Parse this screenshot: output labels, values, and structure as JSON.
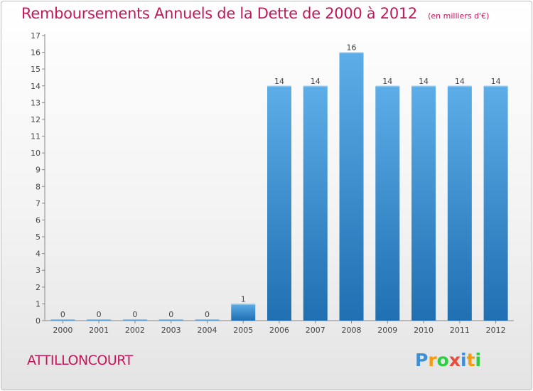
{
  "header": {
    "title": "Remboursements Annuels de la Dette de 2000 à 2012",
    "unit": "(en milliers d'€)"
  },
  "footer": {
    "commune": "ATTILLONCOURT",
    "logo": {
      "letters": [
        "P",
        "r",
        "o",
        "x",
        "i",
        "t",
        "i"
      ],
      "colors": [
        "#3d8fd6",
        "#f39c12",
        "#2ecc40",
        "#e74c3c",
        "#3d8fd6",
        "#f39c12",
        "#2ecc40"
      ]
    }
  },
  "colors": {
    "title": "#c2185b",
    "bar_top": "#5dade8",
    "bar_bottom": "#1f6fb2",
    "axis": "#888888",
    "label": "#444444"
  },
  "chart_data": {
    "type": "bar",
    "categories": [
      "2000",
      "2001",
      "2002",
      "2003",
      "2004",
      "2005",
      "2006",
      "2007",
      "2008",
      "2009",
      "2010",
      "2011",
      "2012"
    ],
    "values": [
      0,
      0,
      0,
      0,
      0,
      1,
      14,
      14,
      16,
      14,
      14,
      14,
      14
    ],
    "data_labels": [
      "0",
      "0",
      "0",
      "0",
      "0",
      "1",
      "14",
      "14",
      "16",
      "14",
      "14",
      "14",
      "14"
    ],
    "ylim": [
      0,
      17
    ],
    "yticks": [
      0,
      1,
      2,
      3,
      4,
      5,
      6,
      7,
      8,
      9,
      10,
      11,
      12,
      13,
      14,
      15,
      16,
      17
    ],
    "grid": false,
    "legend": "none"
  }
}
